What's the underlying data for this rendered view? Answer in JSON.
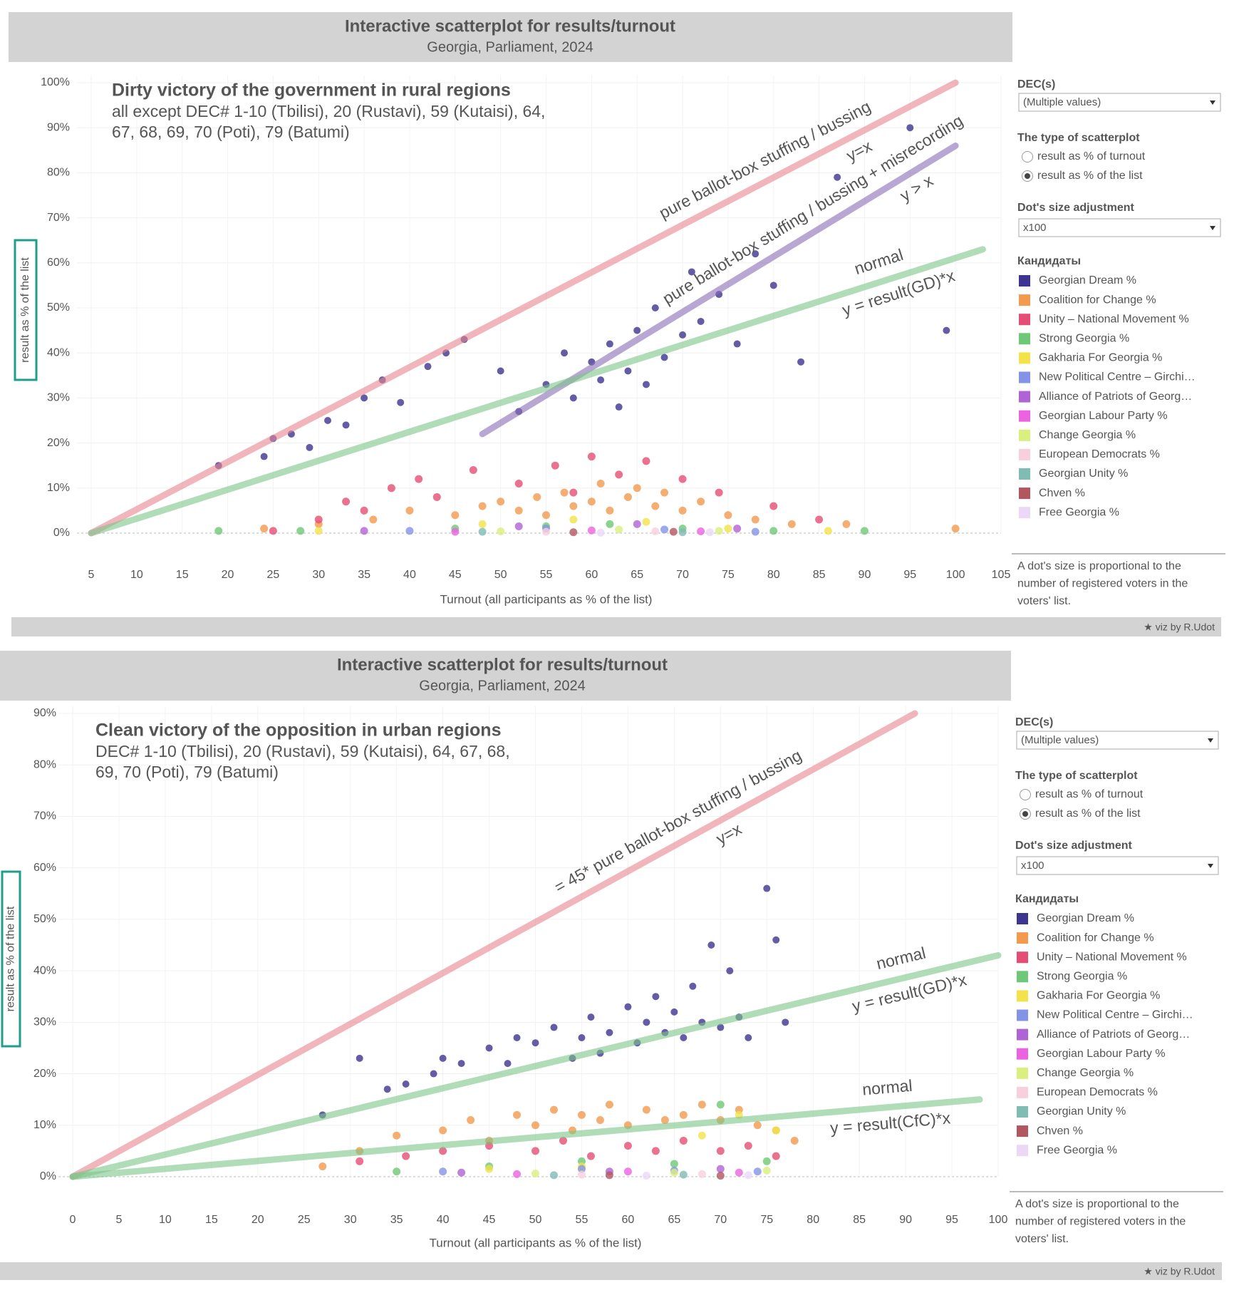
{
  "chart_data": [
    {
      "type": "scatter",
      "title": "Interactive scatterplot for results/turnout",
      "subtitle": "Georgia, Parliament, 2024",
      "headline": "Dirty victory of the government in rural regions",
      "notes": [
        "all except DEC# 1-10 (Tbilisi), 20 (Rustavi), 59 (Kutaisi), 64,",
        "67, 68, 69, 70 (Poti), 79 (Batumi)"
      ],
      "x_label": "Turnout (all participants as % of the list)",
      "y_label": "result as % of the list",
      "xlim": [
        5,
        105
      ],
      "ylim": [
        0,
        100
      ],
      "grid": true,
      "xticks": [
        5,
        10,
        15,
        20,
        25,
        30,
        35,
        40,
        45,
        50,
        55,
        60,
        65,
        70,
        75,
        80,
        85,
        90,
        95,
        100,
        105
      ],
      "yticks": [
        {
          "value": 0,
          "label": "0%"
        },
        {
          "value": 10,
          "label": "10%"
        },
        {
          "value": 20,
          "label": "20%"
        },
        {
          "value": 30,
          "label": "30%"
        },
        {
          "value": 40,
          "label": "40%"
        },
        {
          "value": 50,
          "label": "50%"
        },
        {
          "value": 60,
          "label": "60%"
        },
        {
          "value": 70,
          "label": "70%"
        },
        {
          "value": 80,
          "label": "80%"
        },
        {
          "value": 90,
          "label": "90%"
        },
        {
          "value": 100,
          "label": "100%"
        }
      ],
      "reference_lines": [
        {
          "label": "pure ballot-box stuffing / bussing",
          "formula": "y=x",
          "color": "#e8868f",
          "text_color": "#e0454f",
          "x": [
            5,
            100
          ],
          "y": [
            0,
            100
          ]
        },
        {
          "label": "pure ballot-box stuffing / bussing + misrecording",
          "formula": "y > x",
          "color": "#8a6cb5",
          "text_color": "#6a3d9a",
          "x": [
            48,
            100
          ],
          "y": [
            22,
            86
          ]
        },
        {
          "label": "normal",
          "formula": "y = result(GD)*x",
          "color": "#7cc489",
          "text_color": "#2e9a3a",
          "x": [
            5,
            103
          ],
          "y": [
            0,
            63
          ]
        }
      ],
      "series": [
        {
          "name": "Georgian Dream %",
          "color": "#3d3590",
          "x": [
            19,
            24,
            25,
            27,
            29,
            31,
            33,
            35,
            37,
            39,
            42,
            44,
            46,
            50,
            52,
            55,
            57,
            58,
            60,
            61,
            62,
            63,
            64,
            65,
            66,
            67,
            68,
            70,
            71,
            72,
            74,
            76,
            78,
            80,
            83,
            87,
            95,
            99
          ],
          "values": [
            15,
            17,
            21,
            22,
            19,
            25,
            24,
            30,
            34,
            29,
            37,
            40,
            43,
            36,
            27,
            33,
            40,
            30,
            38,
            34,
            42,
            28,
            36,
            45,
            33,
            50,
            39,
            44,
            58,
            47,
            53,
            42,
            62,
            55,
            38,
            79,
            90,
            45
          ]
        },
        {
          "name": "Coalition for Change %",
          "color": "#f39a4e",
          "x": [
            24,
            30,
            36,
            40,
            45,
            48,
            50,
            52,
            54,
            55,
            57,
            58,
            60,
            61,
            62,
            64,
            65,
            67,
            68,
            70,
            72,
            75,
            78,
            82,
            88,
            100
          ],
          "values": [
            1,
            2,
            3,
            5,
            4,
            6,
            7,
            5,
            8,
            4,
            9,
            6,
            7,
            11,
            5,
            8,
            10,
            6,
            9,
            5,
            7,
            4,
            3,
            2,
            2,
            1
          ]
        },
        {
          "name": "Unity – National Movement %",
          "color": "#e64d74",
          "x": [
            25,
            30,
            33,
            35,
            38,
            41,
            43,
            47,
            52,
            56,
            58,
            60,
            63,
            66,
            70,
            74,
            80,
            85
          ],
          "values": [
            0.5,
            3,
            7,
            5,
            10,
            12,
            8,
            14,
            11,
            15,
            9,
            17,
            13,
            16,
            12,
            9,
            6,
            3
          ]
        },
        {
          "name": "Strong Georgia %",
          "color": "#6fc877",
          "x": [
            19,
            28,
            45,
            55,
            62,
            70,
            80,
            90
          ],
          "values": [
            0.5,
            0.5,
            1,
            1.5,
            2,
            1,
            0.5,
            0.5
          ]
        },
        {
          "name": "Gakharia For Georgia %",
          "color": "#f3e24a",
          "x": [
            30,
            48,
            58,
            66,
            75,
            86
          ],
          "values": [
            0.5,
            2,
            3,
            2.5,
            1,
            0.5
          ]
        },
        {
          "name": "New Political Centre – Girchi…",
          "color": "#8393e6",
          "x": [
            40,
            55,
            68,
            78
          ],
          "values": [
            0.5,
            1,
            0.8,
            0.3
          ]
        },
        {
          "name": "Alliance of Patriots of Georg…",
          "color": "#b063d4",
          "x": [
            35,
            52,
            65,
            76
          ],
          "values": [
            0.5,
            1.5,
            2,
            1
          ]
        },
        {
          "name": "Georgian Labour Party %",
          "color": "#ec63e1",
          "x": [
            45,
            60,
            72
          ],
          "values": [
            0.3,
            0.6,
            0.4
          ]
        },
        {
          "name": "Change Georgia %",
          "color": "#d9ef7e",
          "x": [
            50,
            63,
            74
          ],
          "values": [
            0.4,
            0.8,
            0.5
          ]
        },
        {
          "name": "European Democrats %",
          "color": "#f8cfdd",
          "x": [
            55,
            67
          ],
          "values": [
            0.3,
            0.4
          ]
        },
        {
          "name": "Georgian Unity %",
          "color": "#7fbcb3",
          "x": [
            48,
            70
          ],
          "values": [
            0.3,
            0.2
          ]
        },
        {
          "name": "Chven %",
          "color": "#b25660",
          "x": [
            58,
            69
          ],
          "values": [
            0.2,
            0.3
          ]
        },
        {
          "name": "Free Georgia %",
          "color": "#ead8f6",
          "x": [
            61,
            73
          ],
          "values": [
            0.1,
            0.2
          ]
        }
      ]
    },
    {
      "type": "scatter",
      "title": "Interactive scatterplot for results/turnout",
      "subtitle": "Georgia, Parliament, 2024",
      "headline": "Clean victory of the opposition in urban regions",
      "notes": [
        "DEC# 1-10 (Tbilisi), 20 (Rustavi), 59 (Kutaisi), 64, 67, 68,",
        "69, 70 (Poti), 79 (Batumi)"
      ],
      "x_label": "Turnout (all participants as % of the list)",
      "y_label": "result as % of the list",
      "xlim": [
        0,
        100
      ],
      "ylim": [
        0,
        90
      ],
      "grid": true,
      "xticks": [
        0,
        5,
        10,
        15,
        20,
        25,
        30,
        35,
        40,
        45,
        50,
        55,
        60,
        65,
        70,
        75,
        80,
        85,
        90,
        95,
        100
      ],
      "yticks": [
        {
          "value": 0,
          "label": "0%"
        },
        {
          "value": 10,
          "label": "10%"
        },
        {
          "value": 20,
          "label": "20%"
        },
        {
          "value": 30,
          "label": "30%"
        },
        {
          "value": 40,
          "label": "40%"
        },
        {
          "value": 50,
          "label": "50%"
        },
        {
          "value": 60,
          "label": "60%"
        },
        {
          "value": 70,
          "label": "70%"
        },
        {
          "value": 80,
          "label": "80%"
        },
        {
          "value": 90,
          "label": "90%"
        }
      ],
      "reference_lines": [
        {
          "label": "= 45* pure ballot-box stuffing / bussing",
          "formula": "y=x",
          "color": "#e8868f",
          "text_color": "#e0454f",
          "x": [
            0,
            91
          ],
          "y": [
            0,
            90
          ]
        },
        {
          "label": "normal",
          "formula": "y = result(GD)*x",
          "color": "#7cc489",
          "text_color": "#2e9a3a",
          "x": [
            0,
            100
          ],
          "y": [
            0,
            43
          ]
        },
        {
          "label": "normal",
          "formula": "y = result(CfC)*x",
          "color": "#7cc489",
          "text_color": "#2e9a3a",
          "x": [
            0,
            98
          ],
          "y": [
            0,
            15
          ]
        }
      ],
      "series": [
        {
          "name": "Georgian Dream %",
          "color": "#3d3590",
          "x": [
            27,
            31,
            34,
            36,
            39,
            40,
            42,
            45,
            47,
            48,
            50,
            52,
            54,
            55,
            56,
            57,
            58,
            60,
            61,
            62,
            63,
            64,
            65,
            66,
            67,
            68,
            69,
            70,
            71,
            72,
            73,
            75,
            76,
            77
          ],
          "values": [
            12,
            23,
            17,
            18,
            20,
            23,
            22,
            25,
            22,
            27,
            26,
            29,
            23,
            27,
            31,
            24,
            28,
            33,
            26,
            30,
            35,
            28,
            32,
            27,
            37,
            30,
            45,
            29,
            40,
            31,
            27,
            56,
            46,
            30
          ]
        },
        {
          "name": "Coalition for Change %",
          "color": "#f39a4e",
          "x": [
            27,
            31,
            35,
            40,
            43,
            45,
            48,
            50,
            52,
            54,
            55,
            57,
            58,
            60,
            62,
            64,
            66,
            68,
            70,
            72,
            74,
            76,
            78
          ],
          "values": [
            2,
            5,
            8,
            9,
            11,
            7,
            12,
            10,
            13,
            9,
            12,
            11,
            14,
            10,
            13,
            11,
            12,
            14,
            11,
            13,
            10,
            9,
            7
          ]
        },
        {
          "name": "Unity – National Movement %",
          "color": "#e64d74",
          "x": [
            31,
            36,
            40,
            45,
            50,
            53,
            56,
            60,
            63,
            66,
            70,
            73,
            76
          ],
          "values": [
            3,
            4,
            5,
            6,
            5,
            7,
            4,
            6,
            5,
            7,
            5,
            6,
            4
          ]
        },
        {
          "name": "Strong Georgia %",
          "color": "#6fc877",
          "x": [
            35,
            45,
            55,
            65,
            70,
            75
          ],
          "values": [
            1,
            2,
            3,
            2.5,
            14,
            3
          ]
        },
        {
          "name": "Gakharia For Georgia %",
          "color": "#f3e24a",
          "x": [
            45,
            55,
            68,
            72,
            76
          ],
          "values": [
            1.5,
            2,
            8,
            12,
            9
          ]
        },
        {
          "name": "New Political Centre – Girchi…",
          "color": "#8393e6",
          "x": [
            40,
            55,
            65,
            74
          ],
          "values": [
            1,
            1.5,
            1.2,
            1
          ]
        },
        {
          "name": "Alliance of Patriots of Georg…",
          "color": "#b063d4",
          "x": [
            42,
            58,
            70
          ],
          "values": [
            0.8,
            1,
            1.5
          ]
        },
        {
          "name": "Georgian Labour Party %",
          "color": "#ec63e1",
          "x": [
            48,
            60,
            72
          ],
          "values": [
            0.5,
            1,
            0.8
          ]
        },
        {
          "name": "Change Georgia %",
          "color": "#d9ef7e",
          "x": [
            50,
            65,
            75
          ],
          "values": [
            0.6,
            0.8,
            1.2
          ]
        },
        {
          "name": "European Democrats %",
          "color": "#f8cfdd",
          "x": [
            55,
            68
          ],
          "values": [
            0.4,
            0.5
          ]
        },
        {
          "name": "Georgian Unity %",
          "color": "#7fbcb3",
          "x": [
            52,
            66
          ],
          "values": [
            0.3,
            0.4
          ]
        },
        {
          "name": "Chven %",
          "color": "#b25660",
          "x": [
            58,
            70
          ],
          "values": [
            0.3,
            0.2
          ]
        },
        {
          "name": "Free Georgia %",
          "color": "#ead8f6",
          "x": [
            62,
            73
          ],
          "values": [
            0.2,
            0.3
          ]
        }
      ]
    }
  ],
  "panels": [
    {
      "dec_label": "DEC(s)",
      "dec_value": "(Multiple values)",
      "scatter_type_label": "The type of scatterplot",
      "scatter_type_options": [
        "result as % of turnout",
        "result as % of the list"
      ],
      "selected_option": 1,
      "size_label": "Dot's size adjustment",
      "size_value": "x100",
      "legend_title": "Кандидаты",
      "note": [
        "A dot's size is proportional to the",
        "number of registered voters in the",
        "voters' list."
      ],
      "credit": "★ viz by R.Udot"
    },
    {
      "dec_label": "DEC(s)",
      "dec_value": "(Multiple values)",
      "scatter_type_label": "The type of scatterplot",
      "scatter_type_options": [
        "result as % of turnout",
        "result as % of the list"
      ],
      "selected_option": 1,
      "size_label": "Dot's size adjustment",
      "size_value": "x100",
      "legend_title": "Кандидаты",
      "note": [
        "A dot's size is proportional to the",
        "number of registered voters in the",
        "voters' list."
      ],
      "credit": "★ viz by R.Udot"
    }
  ]
}
